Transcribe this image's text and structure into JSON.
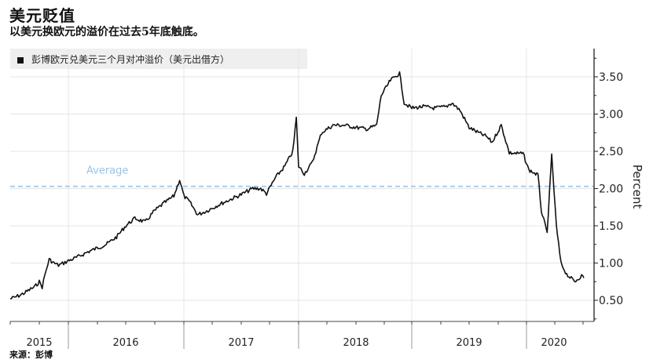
{
  "header": {
    "title": "美元贬值",
    "subtitle": "以美元换欧元的溢价在过去5年底触底。"
  },
  "legend": {
    "label": "彭博欧元兑美元三个月对冲溢价（美元出借方）",
    "color": "#111111"
  },
  "source": "来源：彭博",
  "chart_data": {
    "type": "line",
    "title": "美元贬值",
    "subtitle": "以美元换欧元的溢价在过去5年底触底。",
    "xlabel": "",
    "ylabel": "Percent",
    "ylim": [
      0.25,
      3.9
    ],
    "y_ticks": [
      "0.50",
      "1.00",
      "1.50",
      "2.00",
      "2.50",
      "3.00",
      "3.50"
    ],
    "x_tick_labels": [
      "2015",
      "2016",
      "2017",
      "2018",
      "2019",
      "2020"
    ],
    "grid": true,
    "legend_position": "top-left",
    "annotations": [
      {
        "text": "Average",
        "type": "hline",
        "y": 2.03,
        "style": "dashed",
        "color": "#9cc3e4"
      }
    ],
    "series": [
      {
        "name": "彭博欧元兑美元三个月对冲溢价（美元出借方）",
        "color": "#111111",
        "x": [
          2015.0,
          2015.08,
          2015.17,
          2015.25,
          2015.33,
          2015.42,
          2015.5,
          2015.55,
          2015.6,
          2015.67,
          2015.75,
          2015.83,
          2015.92,
          2016.0,
          2016.08,
          2016.17,
          2016.25,
          2016.33,
          2016.42,
          2016.5,
          2016.58,
          2016.67,
          2016.75,
          2016.83,
          2016.92,
          2016.97,
          2017.0,
          2017.05,
          2017.12,
          2017.2,
          2017.3,
          2017.4,
          2017.5,
          2017.6,
          2017.67,
          2017.72,
          2017.8,
          2017.88,
          2017.95,
          2017.98,
          2018.0,
          2018.05,
          2018.12,
          2018.2,
          2018.3,
          2018.4,
          2018.5,
          2018.6,
          2018.68,
          2018.72,
          2018.8,
          2018.88,
          2018.92,
          2019.0,
          2019.1,
          2019.2,
          2019.3,
          2019.35,
          2019.42,
          2019.5,
          2019.58,
          2019.65,
          2019.7,
          2019.78,
          2019.85,
          2019.92,
          2019.97,
          2020.02,
          2020.1,
          2020.13,
          2020.18,
          2020.22,
          2020.26,
          2020.3,
          2020.35,
          2020.42,
          2020.48,
          2020.5
        ],
        "values": [
          0.52,
          0.54,
          0.57,
          0.6,
          0.64,
          0.68,
          0.75,
          0.68,
          0.85,
          1.05,
          1.0,
          0.97,
          1.0,
          1.03,
          1.08,
          1.15,
          1.2,
          1.25,
          1.35,
          1.5,
          1.6,
          1.55,
          1.7,
          1.8,
          1.9,
          2.12,
          1.9,
          1.82,
          1.65,
          1.7,
          1.78,
          1.85,
          1.92,
          2.0,
          2.0,
          1.93,
          2.15,
          2.3,
          2.5,
          2.95,
          2.3,
          2.2,
          2.35,
          2.75,
          2.85,
          2.85,
          2.82,
          2.8,
          2.85,
          3.25,
          3.45,
          3.55,
          3.15,
          3.08,
          3.1,
          3.08,
          3.1,
          3.15,
          3.05,
          2.82,
          2.75,
          2.7,
          2.62,
          2.85,
          2.48,
          2.47,
          2.47,
          2.25,
          2.18,
          1.7,
          1.4,
          2.45,
          1.5,
          1.0,
          0.85,
          0.75,
          0.83,
          0.8
        ]
      }
    ]
  }
}
